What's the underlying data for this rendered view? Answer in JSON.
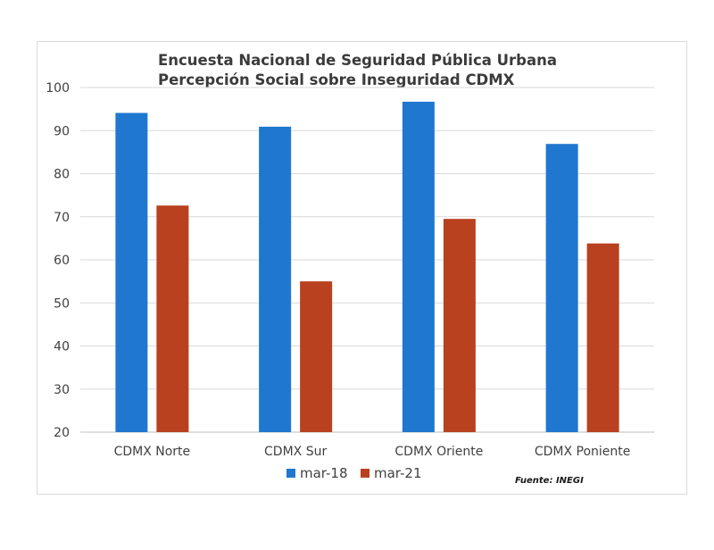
{
  "chart_data": {
    "type": "bar",
    "title": "Encuesta Nacional de Seguridad Pública Urbana",
    "subtitle": "Percepción Social sobre Inseguridad CDMX",
    "categories": [
      "CDMX Norte",
      "CDMX Sur",
      "CDMX Oriente",
      "CDMX Poniente"
    ],
    "series": [
      {
        "name": "mar-18",
        "color": "#1f77d0",
        "values": [
          94.1,
          90.9,
          96.7,
          86.9
        ]
      },
      {
        "name": "mar-21",
        "color": "#b9411f",
        "values": [
          72.6,
          55.0,
          69.5,
          63.8
        ]
      }
    ],
    "ylim": [
      20,
      100
    ],
    "yticks": [
      20,
      30,
      40,
      50,
      60,
      70,
      80,
      90,
      100
    ],
    "xlabel": "",
    "ylabel": "",
    "grid": true,
    "legend": "bottom",
    "source": "Fuente: INEGI"
  }
}
